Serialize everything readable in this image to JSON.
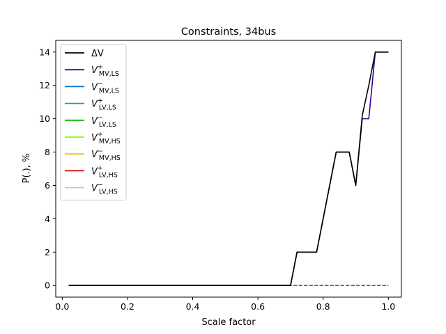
{
  "chart_data": {
    "type": "line",
    "title": "Constraints, 34bus",
    "xlabel": "Scale factor",
    "ylabel": "P(.), %",
    "xlim": [
      -0.02,
      1.04
    ],
    "ylim": [
      -0.7,
      14.7
    ],
    "xticks": [
      0.0,
      0.2,
      0.4,
      0.6,
      0.8,
      1.0
    ],
    "xtick_labels": [
      "0.0",
      "0.2",
      "0.4",
      "0.6",
      "0.8",
      "1.0"
    ],
    "yticks": [
      0,
      2,
      4,
      6,
      8,
      10,
      12,
      14
    ],
    "ytick_labels": [
      "0",
      "2",
      "4",
      "6",
      "8",
      "10",
      "12",
      "14"
    ],
    "grid": false,
    "legend_position": "top-left",
    "x": [
      0.02,
      0.04,
      0.06,
      0.08,
      0.1,
      0.12,
      0.14,
      0.16,
      0.18,
      0.2,
      0.22,
      0.24,
      0.26,
      0.28,
      0.3,
      0.32,
      0.34,
      0.36,
      0.38,
      0.4,
      0.42,
      0.44,
      0.46,
      0.48,
      0.5,
      0.52,
      0.54,
      0.56,
      0.58,
      0.6,
      0.62,
      0.64,
      0.66,
      0.68,
      0.7,
      0.72,
      0.74,
      0.76,
      0.78,
      0.8,
      0.82,
      0.84,
      0.86,
      0.88,
      0.9,
      0.92,
      0.94,
      0.96,
      0.98,
      1.0
    ],
    "series": [
      {
        "key": "dv",
        "name": "ΔV",
        "color": "#000000",
        "dash": "solid",
        "width": 1.6,
        "values": [
          0,
          0,
          0,
          0,
          0,
          0,
          0,
          0,
          0,
          0,
          0,
          0,
          0,
          0,
          0,
          0,
          0,
          0,
          0,
          0,
          0,
          0,
          0,
          0,
          0,
          0,
          0,
          0,
          0,
          0,
          0,
          0,
          0,
          0,
          0,
          2,
          2,
          2,
          2,
          4,
          6,
          8,
          8,
          8,
          6,
          10.2,
          12,
          14,
          14,
          14
        ]
      },
      {
        "key": "mvp_ls",
        "name": "V+ MV,LS",
        "color": "#3b0096",
        "dash": "solid",
        "width": 1.6,
        "values": [
          0,
          0,
          0,
          0,
          0,
          0,
          0,
          0,
          0,
          0,
          0,
          0,
          0,
          0,
          0,
          0,
          0,
          0,
          0,
          0,
          0,
          0,
          0,
          0,
          0,
          0,
          0,
          0,
          0,
          0,
          0,
          0,
          0,
          0,
          0,
          2,
          2,
          2,
          2,
          4,
          6,
          8,
          8,
          8,
          6,
          10,
          10,
          14,
          14,
          14
        ]
      },
      {
        "key": "mvm_ls",
        "name": "V− MV,LS",
        "color": "#0a6fd1",
        "dash": "dashed",
        "width": 1.2,
        "values": [
          0,
          0,
          0,
          0,
          0,
          0,
          0,
          0,
          0,
          0,
          0,
          0,
          0,
          0,
          0,
          0,
          0,
          0,
          0,
          0,
          0,
          0,
          0,
          0,
          0,
          0,
          0,
          0,
          0,
          0,
          0,
          0,
          0,
          0,
          0,
          0,
          0,
          0,
          0,
          0,
          0,
          0,
          0,
          0,
          0,
          0,
          0,
          0,
          0,
          0
        ]
      },
      {
        "key": "lvp_ls",
        "name": "V+ LV,LS",
        "color": "#00a8a0",
        "dash": "dashed",
        "width": 1.2,
        "values": [
          0,
          0,
          0,
          0,
          0,
          0,
          0,
          0,
          0,
          0,
          0,
          0,
          0,
          0,
          0,
          0,
          0,
          0,
          0,
          0,
          0,
          0,
          0,
          0,
          0,
          0,
          0,
          0,
          0,
          0,
          0,
          0,
          0,
          0,
          0,
          0,
          0,
          0,
          0,
          0,
          0,
          0,
          0,
          0,
          0,
          0,
          0,
          0,
          0,
          0
        ]
      },
      {
        "key": "lvm_ls",
        "name": "V− LV,LS",
        "color": "#00b400",
        "dash": "dashed",
        "width": 1.2,
        "values": [
          0,
          0,
          0,
          0,
          0,
          0,
          0,
          0,
          0,
          0,
          0,
          0,
          0,
          0,
          0,
          0,
          0,
          0,
          0,
          0,
          0,
          0,
          0,
          0,
          0,
          0,
          0,
          0,
          0,
          0,
          0,
          0,
          0,
          0,
          0,
          0,
          0,
          0,
          0,
          0,
          0,
          0,
          0,
          0,
          0,
          0,
          0,
          0,
          0,
          0
        ]
      },
      {
        "key": "mvp_hs",
        "name": "V+ MV,HS",
        "color": "#7cff1a",
        "dash": "dashed",
        "width": 1.2,
        "values": [
          0,
          0,
          0,
          0,
          0,
          0,
          0,
          0,
          0,
          0,
          0,
          0,
          0,
          0,
          0,
          0,
          0,
          0,
          0,
          0,
          0,
          0,
          0,
          0,
          0,
          0,
          0,
          0,
          0,
          0,
          0,
          0,
          0,
          0,
          0,
          0,
          0,
          0,
          0,
          0,
          0,
          0,
          0,
          0,
          0,
          0,
          0,
          0,
          0,
          0
        ]
      },
      {
        "key": "mvm_hs",
        "name": "V− MV,HS",
        "color": "#f2c200",
        "dash": "dashed",
        "width": 1.2,
        "values": [
          0,
          0,
          0,
          0,
          0,
          0,
          0,
          0,
          0,
          0,
          0,
          0,
          0,
          0,
          0,
          0,
          0,
          0,
          0,
          0,
          0,
          0,
          0,
          0,
          0,
          0,
          0,
          0,
          0,
          0,
          0,
          0,
          0,
          0,
          0,
          0,
          0,
          0,
          0,
          0,
          0,
          0,
          0,
          0,
          0,
          0,
          0,
          0,
          0,
          0
        ]
      },
      {
        "key": "lvp_hs",
        "name": "V+ LV,HS",
        "color": "#d40000",
        "dash": "dashed",
        "width": 1.2,
        "values": [
          0,
          0,
          0,
          0,
          0,
          0,
          0,
          0,
          0,
          0,
          0,
          0,
          0,
          0,
          0,
          0,
          0,
          0,
          0,
          0,
          0,
          0,
          0,
          0,
          0,
          0,
          0,
          0,
          0,
          0,
          0,
          0,
          0,
          0,
          0,
          0,
          0,
          0,
          0,
          0,
          0,
          0,
          0,
          0,
          0,
          0,
          0,
          0,
          0,
          0
        ]
      },
      {
        "key": "lvm_hs",
        "name": "V− LV,HS",
        "color": "#c8c8c8",
        "dash": "dashed",
        "width": 1.4,
        "values": [
          0,
          0,
          0,
          0,
          0,
          0,
          0,
          0,
          0,
          0,
          0,
          0,
          0,
          0,
          0,
          0,
          0,
          0,
          0,
          0,
          0,
          0,
          0,
          0,
          0,
          0,
          0,
          0,
          0,
          0,
          0,
          0,
          0,
          0,
          0,
          0,
          0,
          0,
          0,
          0,
          0,
          0,
          0,
          0,
          0,
          0,
          0,
          0,
          0,
          0
        ]
      }
    ]
  }
}
